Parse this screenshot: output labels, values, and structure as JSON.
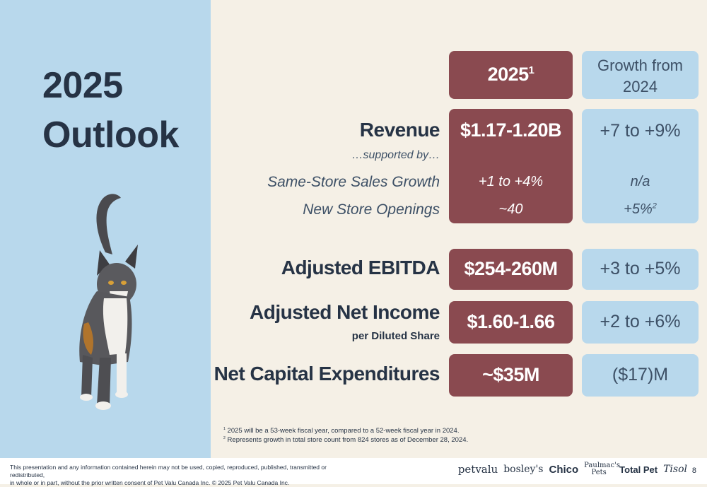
{
  "title": {
    "line1": "2025",
    "line2": "Outlook"
  },
  "header": {
    "year": "2025",
    "year_sup": "1",
    "growth_line1": "Growth from",
    "growth_line2": "2024"
  },
  "revenue": {
    "label": "Revenue",
    "supported": "…supported by…",
    "value": "$1.17-1.20B",
    "growth": "+7 to +9%"
  },
  "sssg": {
    "label": "Same-Store Sales Growth",
    "value": "+1 to +4%",
    "growth": "n/a"
  },
  "stores": {
    "label": "New Store Openings",
    "value": "~40",
    "growth": "+5%",
    "growth_sup": "2"
  },
  "ebitda": {
    "label": "Adjusted EBITDA",
    "value": "$254-260M",
    "growth": "+3 to +5%"
  },
  "netincome": {
    "label": "Adjusted Net Income",
    "sublabel": "per Diluted Share",
    "value": "$1.60-1.66",
    "growth": "+2 to +6%"
  },
  "capex": {
    "label": "Net Capital Expenditures",
    "value": "~$35M",
    "growth": "($17)M"
  },
  "footnotes": {
    "fn1_num": "1",
    "fn1": "2025 will be a 53-week fiscal year, compared to a 52-week fiscal year in 2024.",
    "fn2_num": "2",
    "fn2": "Represents growth in total store count from 824 stores as of December 28, 2024."
  },
  "disclaimer": {
    "line1": "This presentation and any information contained herein may not be used, copied, reproduced, published, transmitted or redistributed,",
    "line2": "in whole or in part, without the prior written consent of Pet Valu Canada Inc. © 2025 Pet Valu Canada Inc."
  },
  "brands": [
    "petvalu",
    "bosley's",
    "Chico",
    "Paulmac's Pets",
    "Total Pet",
    "Tisol"
  ],
  "page_number": "8",
  "colors": {
    "navy": "#263345",
    "maroon": "#8a4a50",
    "light_blue": "#b8d8ec",
    "cream": "#f5f0e6"
  }
}
